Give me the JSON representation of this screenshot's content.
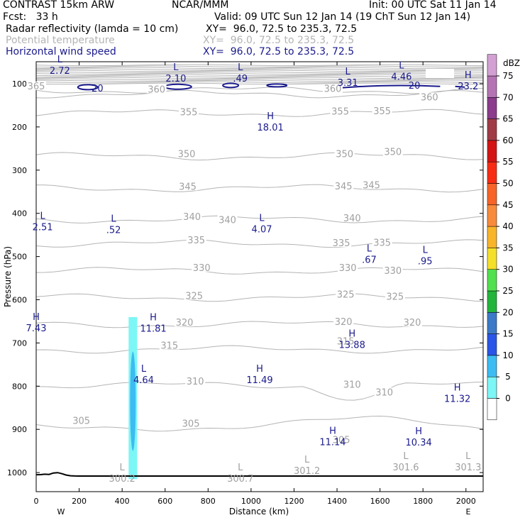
{
  "header": {
    "model": "CONTRAST 15km ARW",
    "org": "NCAR/MMM",
    "init": "Init: 00 UTC Sat 11 Jan 14",
    "fcst": "Fcst:   33 h",
    "valid": "Valid: 09 UTC Sun 12 Jan 14 (19 ChT Sun 12 Jan 14)",
    "fields": [
      {
        "name": "Radar reflectivity (lamda = 10 cm)",
        "xy": "XY=  96.0, 72.5 to 235.3, 72.5",
        "color": "#000000"
      },
      {
        "name": "Potential temperature",
        "xy": "XY=  96.0, 72.5 to 235.3, 72.5",
        "color": "#b4b4b4"
      },
      {
        "name": "Horizontal wind speed",
        "xy": "XY=  96.0, 72.5 to 235.3, 72.5",
        "color": "#1a1a8c"
      }
    ]
  },
  "chart_data": {
    "type": "cross-section contour",
    "xlabel": "Distance (km)",
    "ylabel": "Pressure (hPa)",
    "xlim": [
      0,
      2080
    ],
    "ylim": [
      1050,
      55
    ],
    "x_ticks": [
      0,
      200,
      400,
      600,
      800,
      1000,
      1200,
      1400,
      1600,
      1800,
      2000
    ],
    "y_ticks": [
      100,
      200,
      300,
      400,
      500,
      600,
      700,
      800,
      900,
      1000
    ],
    "x_end_labels": {
      "left": "W",
      "right": "E"
    },
    "colorbar": {
      "unit": "dBZ",
      "levels": [
        0,
        5,
        10,
        15,
        20,
        25,
        30,
        35,
        40,
        45,
        50,
        55,
        60,
        65,
        70,
        75
      ],
      "colors": [
        "#ffffff",
        "#7df6f6",
        "#3cbcf2",
        "#2a55e8",
        "#3c7ac8",
        "#23b43c",
        "#52e04e",
        "#f4e02a",
        "#f8b52a",
        "#f88a3c",
        "#f86428",
        "#f82c14",
        "#d41414",
        "#a03c46",
        "#8c3c8c",
        "#b474b4",
        "#d2a0d2"
      ]
    },
    "theta_labels": [
      {
        "x": 0,
        "p": 110,
        "v": "365"
      },
      {
        "x": 560,
        "p": 117,
        "v": "360"
      },
      {
        "x": 1380,
        "p": 116,
        "v": "360"
      },
      {
        "x": 1830,
        "p": 135,
        "v": "360"
      },
      {
        "x": 710,
        "p": 170,
        "v": "355"
      },
      {
        "x": 1415,
        "p": 168,
        "v": "355"
      },
      {
        "x": 1610,
        "p": 167,
        "v": "355"
      },
      {
        "x": 700,
        "p": 267,
        "v": "350"
      },
      {
        "x": 1435,
        "p": 267,
        "v": "350"
      },
      {
        "x": 1660,
        "p": 262,
        "v": "350"
      },
      {
        "x": 705,
        "p": 342,
        "v": "345"
      },
      {
        "x": 1430,
        "p": 341,
        "v": "345"
      },
      {
        "x": 1560,
        "p": 339,
        "v": "345"
      },
      {
        "x": 725,
        "p": 412,
        "v": "340"
      },
      {
        "x": 890,
        "p": 419,
        "v": "340"
      },
      {
        "x": 1470,
        "p": 415,
        "v": "340"
      },
      {
        "x": 745,
        "p": 466,
        "v": "335"
      },
      {
        "x": 1420,
        "p": 473,
        "v": "335"
      },
      {
        "x": 1610,
        "p": 472,
        "v": "335"
      },
      {
        "x": 770,
        "p": 530,
        "v": "330"
      },
      {
        "x": 1450,
        "p": 530,
        "v": "330"
      },
      {
        "x": 1660,
        "p": 537,
        "v": "330"
      },
      {
        "x": 735,
        "p": 595,
        "v": "325"
      },
      {
        "x": 1440,
        "p": 592,
        "v": "325"
      },
      {
        "x": 1670,
        "p": 597,
        "v": "325"
      },
      {
        "x": 690,
        "p": 657,
        "v": "320"
      },
      {
        "x": 1430,
        "p": 655,
        "v": "320"
      },
      {
        "x": 1750,
        "p": 657,
        "v": "320"
      },
      {
        "x": 620,
        "p": 710,
        "v": "315"
      },
      {
        "x": 1440,
        "p": 700,
        "v": "315"
      },
      {
        "x": 740,
        "p": 793,
        "v": "310"
      },
      {
        "x": 1470,
        "p": 800,
        "v": "310"
      },
      {
        "x": 1620,
        "p": 818,
        "v": "310"
      },
      {
        "x": 210,
        "p": 884,
        "v": "305"
      },
      {
        "x": 720,
        "p": 891,
        "v": "305"
      },
      {
        "x": 1420,
        "p": 928,
        "v": "305"
      }
    ],
    "wind_labels": [
      {
        "x": 110,
        "p": 74,
        "letter": "L",
        "v": "2.72"
      },
      {
        "x": 650,
        "p": 92,
        "letter": "L",
        "v": "2.10"
      },
      {
        "x": 950,
        "p": 92,
        "letter": "L",
        "v": ".49"
      },
      {
        "x": 1450,
        "p": 102,
        "letter": "L",
        "v": "3.31"
      },
      {
        "x": 1700,
        "p": 88,
        "letter": "L",
        "v": "4.46"
      },
      {
        "x": 2010,
        "p": 110,
        "letter": "H",
        "v": "23.2"
      },
      {
        "x": 1090,
        "p": 205,
        "letter": "H",
        "v": "18.01"
      },
      {
        "x": 30,
        "p": 436,
        "letter": "L",
        "v": "2.51"
      },
      {
        "x": 360,
        "p": 442,
        "letter": "L",
        "v": ".52"
      },
      {
        "x": 1050,
        "p": 441,
        "letter": "L",
        "v": "4.07"
      },
      {
        "x": 1550,
        "p": 511,
        "letter": "L",
        "v": ".67"
      },
      {
        "x": 1810,
        "p": 515,
        "letter": "L",
        "v": ".95"
      },
      {
        "x": 0,
        "p": 670,
        "letter": "H",
        "v": "7.43"
      },
      {
        "x": 545,
        "p": 671,
        "letter": "H",
        "v": "11.81"
      },
      {
        "x": 1470,
        "p": 708,
        "letter": "H",
        "v": "13.88"
      },
      {
        "x": 500,
        "p": 790,
        "letter": "L",
        "v": "4.64"
      },
      {
        "x": 1040,
        "p": 790,
        "letter": "H",
        "v": "11.49"
      },
      {
        "x": 1960,
        "p": 833,
        "letter": "H",
        "v": "11.32"
      },
      {
        "x": 1380,
        "p": 933,
        "letter": "H",
        "v": "11.14"
      },
      {
        "x": 1780,
        "p": 934,
        "letter": "H",
        "v": "10.34"
      }
    ],
    "theta_extremes": [
      {
        "x": 400,
        "p": 1018,
        "letter": "L",
        "v": "300.2"
      },
      {
        "x": 950,
        "p": 1018,
        "letter": "L",
        "v": "300.7"
      },
      {
        "x": 1260,
        "p": 1000,
        "letter": "L",
        "v": "301.2"
      },
      {
        "x": 1720,
        "p": 992,
        "letter": "L",
        "v": "301.6"
      },
      {
        "x": 2010,
        "p": 992,
        "letter": "L",
        "v": "301.3"
      }
    ],
    "wind_contour_label": "20",
    "reflectivity_cell": {
      "x_center": 450,
      "p_top": 640,
      "p_bottom": 1015,
      "core_dbz": 10,
      "edge_dbz": 5
    }
  }
}
